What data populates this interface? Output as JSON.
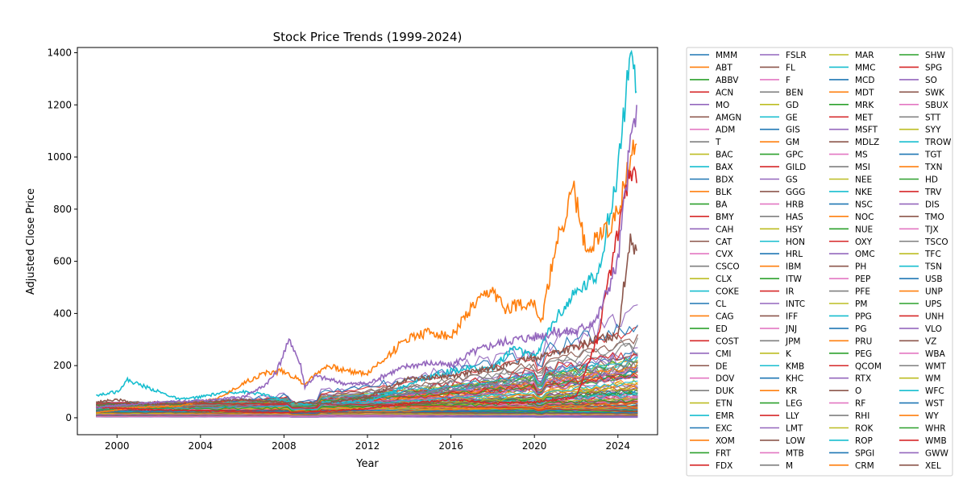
{
  "chart_data": {
    "type": "line",
    "title": "Stock Price Trends (1999-2024)",
    "xlabel": "Year",
    "ylabel": "Adjusted Close Price",
    "xlim": [
      1998.1,
      2025.9
    ],
    "ylim": [
      -65,
      1420
    ],
    "x_ticks": [
      2000,
      2004,
      2008,
      2012,
      2016,
      2020,
      2024
    ],
    "y_ticks": [
      0,
      200,
      400,
      600,
      800,
      1000,
      1200,
      1400
    ],
    "grid": false,
    "legend_placement": "outside-right",
    "legend_columns": 4,
    "palette": [
      "#1f77b4",
      "#ff7f0e",
      "#2ca02c",
      "#d62728",
      "#9467bd",
      "#8c564b",
      "#e377c2",
      "#7f7f7f",
      "#bcbd22",
      "#17becf"
    ],
    "legend": [
      "MMM",
      "ABT",
      "ABBV",
      "ACN",
      "MO",
      "AMGN",
      "ADM",
      "T",
      "BAC",
      "BAX",
      "BDX",
      "BLK",
      "BA",
      "BMY",
      "CAH",
      "CAT",
      "CVX",
      "CSCO",
      "CLX",
      "COKE",
      "CL",
      "CAG",
      "ED",
      "COST",
      "CMI",
      "DE",
      "DOV",
      "DUK",
      "ETN",
      "EMR",
      "EXC",
      "XOM",
      "FRT",
      "FDX",
      "FSLR",
      "FL",
      "F",
      "BEN",
      "GD",
      "GE",
      "GIS",
      "GM",
      "GPC",
      "GILD",
      "GS",
      "GGG",
      "HRB",
      "HAS",
      "HSY",
      "HON",
      "HRL",
      "IBM",
      "ITW",
      "IR",
      "INTC",
      "IFF",
      "JNJ",
      "JPM",
      "K",
      "KMB",
      "KHC",
      "KR",
      "LEG",
      "LLY",
      "LMT",
      "LOW",
      "MTB",
      "M",
      "MAR",
      "MMC",
      "MCD",
      "MDT",
      "MRK",
      "MET",
      "MSFT",
      "MDLZ",
      "MS",
      "MSI",
      "NEE",
      "NKE",
      "NSC",
      "NOC",
      "NUE",
      "OXY",
      "OMC",
      "PH",
      "PEP",
      "PFE",
      "PM",
      "PPG",
      "PG",
      "PRU",
      "PEG",
      "QCOM",
      "RTX",
      "O",
      "RF",
      "RHI",
      "ROK",
      "ROP",
      "SPGI",
      "CRM",
      "SHW",
      "SPG",
      "SO",
      "SWK",
      "SBUX",
      "STT",
      "SYY",
      "TROW",
      "TGT",
      "TXN",
      "HD",
      "TRV",
      "DIS",
      "TMO",
      "TJX",
      "TSCO",
      "TFC",
      "TSN",
      "USB",
      "UNP",
      "UPS",
      "UNH",
      "VLO",
      "VZ",
      "WBA",
      "WMT",
      "WM",
      "WFC",
      "WST",
      "WY",
      "WHR",
      "WMB",
      "GWW",
      "XEL"
    ],
    "highlight_series": [
      {
        "name": "COKE",
        "color": "#17becf",
        "points": [
          [
            1999.0,
            85
          ],
          [
            2000.0,
            100
          ],
          [
            2000.5,
            145
          ],
          [
            2001.0,
            130
          ],
          [
            2002.0,
            100
          ],
          [
            2003.0,
            70
          ],
          [
            2004.0,
            80
          ],
          [
            2005.0,
            95
          ],
          [
            2006.0,
            100
          ],
          [
            2007.0,
            90
          ],
          [
            2008.0,
            65
          ],
          [
            2009.0,
            50
          ],
          [
            2010.0,
            60
          ],
          [
            2011.0,
            60
          ],
          [
            2012.0,
            65
          ],
          [
            2013.0,
            90
          ],
          [
            2014.0,
            130
          ],
          [
            2015.0,
            160
          ],
          [
            2016.0,
            180
          ],
          [
            2017.0,
            190
          ],
          [
            2018.0,
            190
          ],
          [
            2019.0,
            270
          ],
          [
            2020.0,
            230
          ],
          [
            2021.0,
            380
          ],
          [
            2022.0,
            480
          ],
          [
            2023.0,
            550
          ],
          [
            2023.8,
            850
          ],
          [
            2024.2,
            1100
          ],
          [
            2024.5,
            1350
          ],
          [
            2024.7,
            1320
          ],
          [
            2024.9,
            1250
          ]
        ]
      },
      {
        "name": "BLK",
        "color": "#ff7f0e",
        "points": [
          [
            1999.0,
            20
          ],
          [
            2001.0,
            40
          ],
          [
            2003.0,
            45
          ],
          [
            2005.0,
            80
          ],
          [
            2006.0,
            130
          ],
          [
            2007.0,
            170
          ],
          [
            2008.0,
            180
          ],
          [
            2009.0,
            130
          ],
          [
            2010.0,
            200
          ],
          [
            2011.0,
            180
          ],
          [
            2012.0,
            170
          ],
          [
            2013.0,
            240
          ],
          [
            2014.0,
            310
          ],
          [
            2015.0,
            330
          ],
          [
            2016.0,
            310
          ],
          [
            2017.0,
            420
          ],
          [
            2018.0,
            490
          ],
          [
            2018.5,
            420
          ],
          [
            2019.0,
            430
          ],
          [
            2020.0,
            450
          ],
          [
            2020.3,
            350
          ],
          [
            2021.0,
            650
          ],
          [
            2021.9,
            880
          ],
          [
            2022.5,
            620
          ],
          [
            2023.0,
            700
          ],
          [
            2023.8,
            750
          ],
          [
            2024.5,
            950
          ],
          [
            2024.9,
            1050
          ]
        ]
      },
      {
        "name": "AMGN",
        "color": "#8c564b",
        "points": [
          [
            1999.0,
            60
          ],
          [
            2000.0,
            70
          ],
          [
            2001.0,
            55
          ],
          [
            2002.0,
            50
          ],
          [
            2004.0,
            60
          ],
          [
            2006.0,
            70
          ],
          [
            2008.0,
            60
          ],
          [
            2010.0,
            55
          ],
          [
            2012.0,
            80
          ],
          [
            2014.0,
            150
          ],
          [
            2016.0,
            160
          ],
          [
            2018.0,
            190
          ],
          [
            2020.0,
            230
          ],
          [
            2022.0,
            270
          ],
          [
            2023.0,
            300
          ],
          [
            2024.0,
            320
          ],
          [
            2024.6,
            700
          ],
          [
            2024.9,
            640
          ]
        ]
      },
      {
        "name": "BMY",
        "color": "#d62728",
        "points": [
          [
            1999.0,
            40
          ],
          [
            2002.0,
            30
          ],
          [
            2005.0,
            25
          ],
          [
            2008.0,
            20
          ],
          [
            2010.0,
            25
          ],
          [
            2012.0,
            35
          ],
          [
            2014.0,
            55
          ],
          [
            2016.0,
            70
          ],
          [
            2018.0,
            55
          ],
          [
            2020.0,
            60
          ],
          [
            2021.0,
            70
          ],
          [
            2022.0,
            80
          ],
          [
            2023.0,
            300
          ],
          [
            2023.5,
            500
          ],
          [
            2024.0,
            700
          ],
          [
            2024.6,
            980
          ],
          [
            2024.9,
            900
          ]
        ]
      },
      {
        "name": "CAH",
        "color": "#9467bd",
        "points": [
          [
            1999.0,
            40
          ],
          [
            2002.0,
            60
          ],
          [
            2004.0,
            65
          ],
          [
            2006.0,
            80
          ],
          [
            2007.0,
            120
          ],
          [
            2007.6,
            170
          ],
          [
            2008.0,
            250
          ],
          [
            2008.3,
            300
          ],
          [
            2008.8,
            200
          ],
          [
            2009.0,
            120
          ],
          [
            2009.5,
            160
          ],
          [
            2010.0,
            150
          ],
          [
            2011.0,
            130
          ],
          [
            2012.0,
            130
          ],
          [
            2013.0,
            170
          ],
          [
            2014.0,
            200
          ],
          [
            2015.0,
            210
          ],
          [
            2016.0,
            200
          ],
          [
            2017.0,
            250
          ],
          [
            2018.0,
            280
          ],
          [
            2019.0,
            300
          ],
          [
            2020.0,
            310
          ],
          [
            2021.0,
            330
          ],
          [
            2022.0,
            330
          ],
          [
            2023.0,
            380
          ],
          [
            2024.0,
            600
          ],
          [
            2024.6,
            1050
          ],
          [
            2024.9,
            1200
          ]
        ]
      }
    ]
  }
}
